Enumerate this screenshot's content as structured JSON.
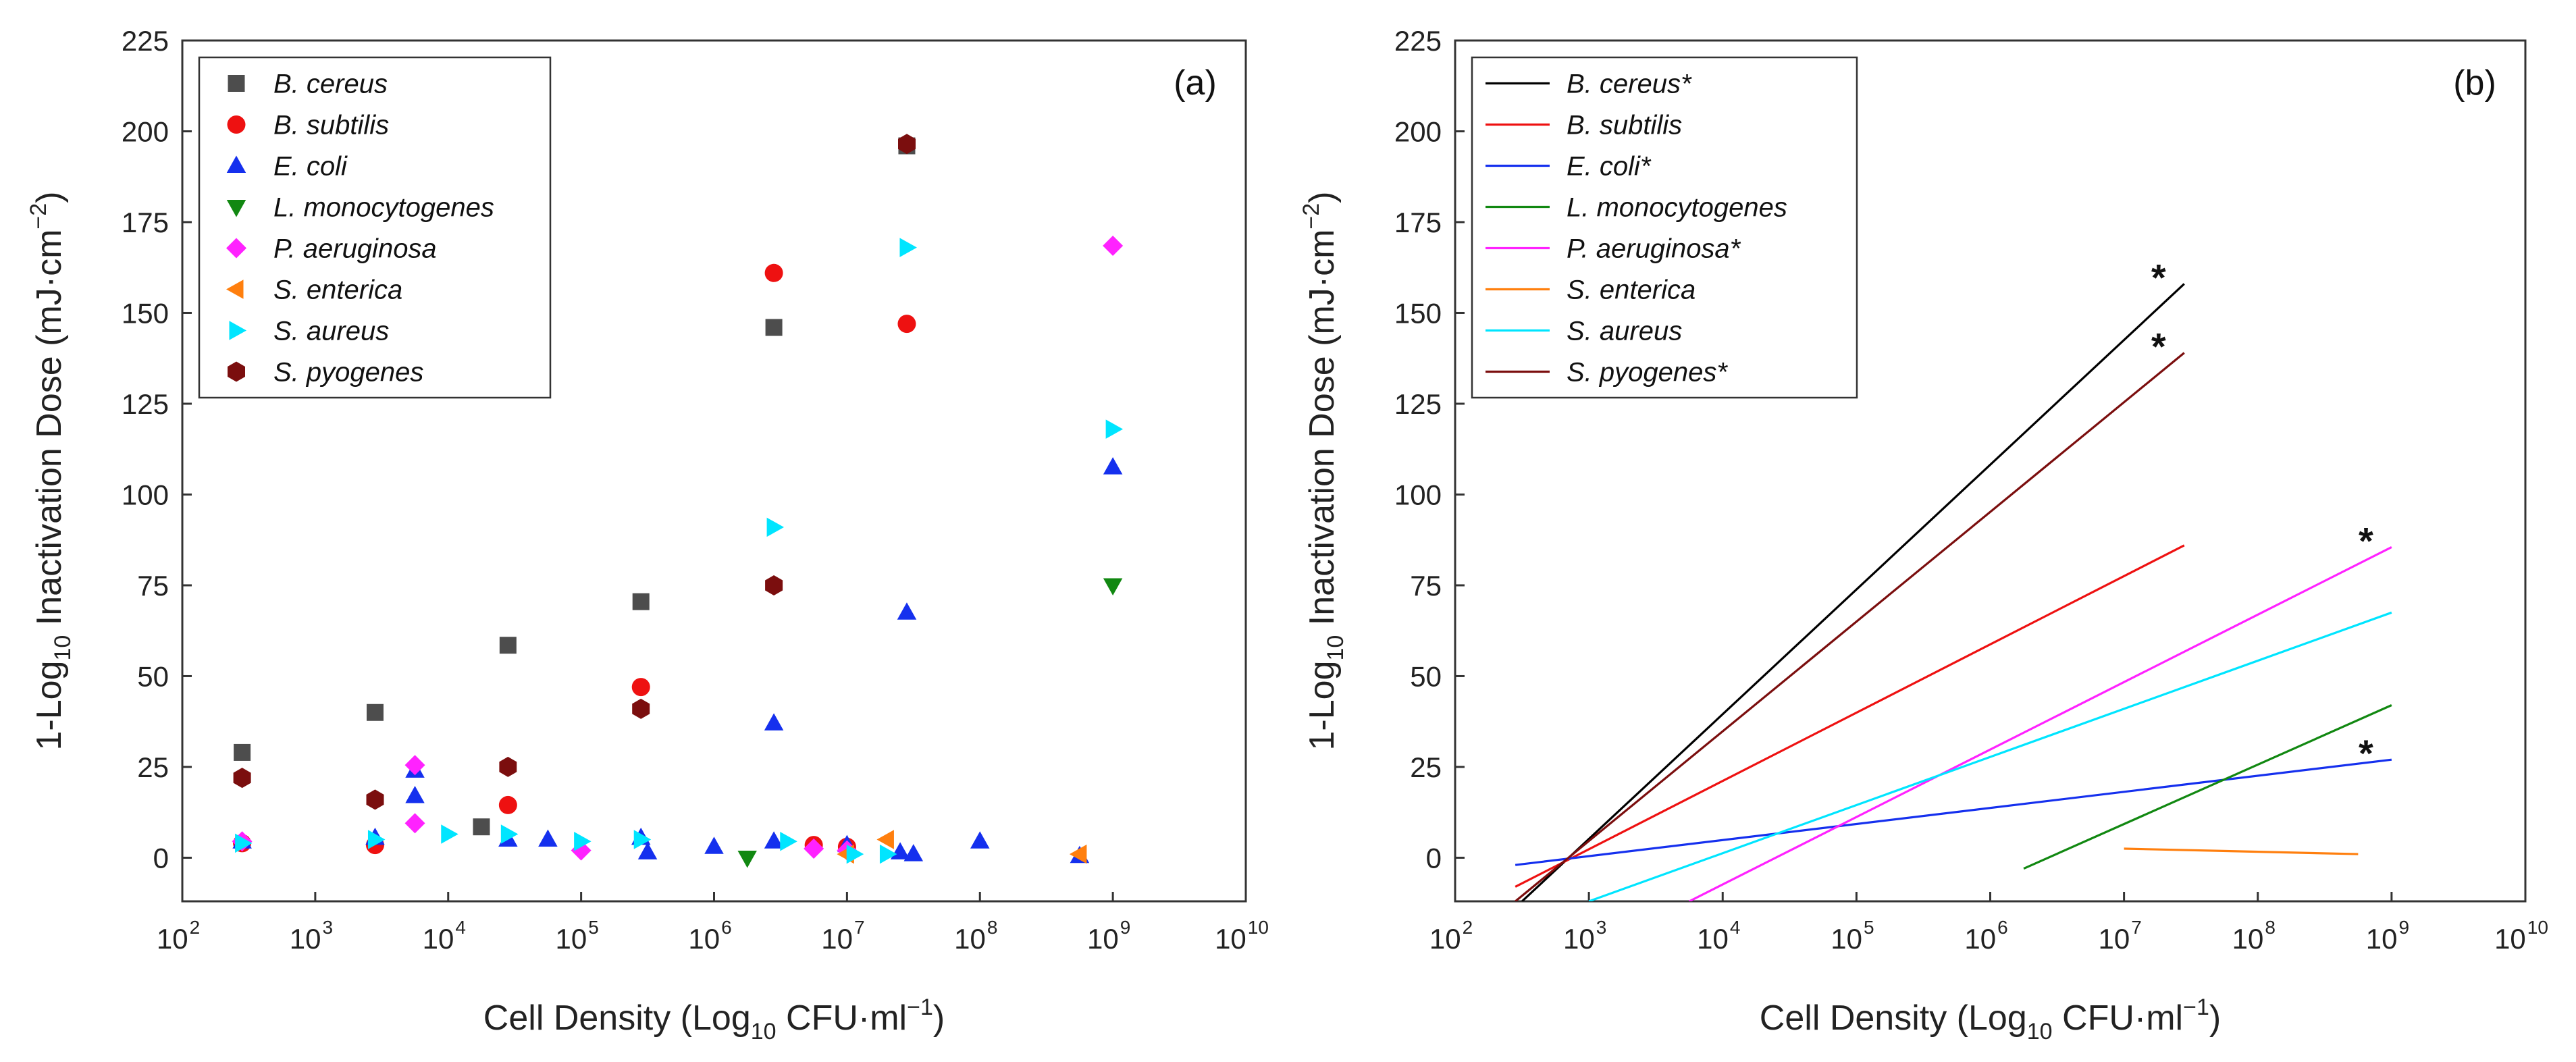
{
  "chart_data": [
    {
      "panel_label": "(a)",
      "type": "scatter",
      "xscale": "log10",
      "xlim": [
        2,
        10
      ],
      "ylim": [
        -12,
        225
      ],
      "x_ticks": [
        2,
        3,
        4,
        5,
        6,
        7,
        8,
        9,
        10
      ],
      "y_ticks": [
        0,
        25,
        50,
        75,
        100,
        125,
        150,
        175,
        200,
        225
      ],
      "tick_base": "10",
      "xlabel": {
        "main": "Cell Density (Log",
        "sub": "10",
        "rest": " CFU·ml",
        "sup": "−1",
        "end": ")"
      },
      "ylabel": {
        "pre": "1-Log",
        "sub": "10",
        "main": " Inactivation Dose (mJ·cm",
        "sup": "−2",
        "end": ")"
      },
      "legend_position": "top-left",
      "series": [
        {
          "name": "B. cereus",
          "marker": "square",
          "color": "#4d4d4d",
          "points": [
            [
              2.45,
              29
            ],
            [
              3.45,
              40
            ],
            [
              4.25,
              8.5
            ],
            [
              4.45,
              58.5
            ],
            [
              5.45,
              70.5
            ],
            [
              6.45,
              146
            ],
            [
              7.45,
              196
            ]
          ]
        },
        {
          "name": "B. subtilis",
          "marker": "circle",
          "color": "#ee1111",
          "points": [
            [
              2.45,
              4
            ],
            [
              3.45,
              3.5
            ],
            [
              4.45,
              14.5
            ],
            [
              5.45,
              47
            ],
            [
              6.45,
              161
            ],
            [
              7.45,
              147
            ],
            [
              6.75,
              3.5
            ],
            [
              7.0,
              3
            ]
          ]
        },
        {
          "name": "E. coli",
          "marker": "triangle-up",
          "color": "#1530ee",
          "points": [
            [
              2.45,
              4.5
            ],
            [
              3.45,
              5.5
            ],
            [
              3.75,
              24
            ],
            [
              3.75,
              17
            ],
            [
              4.45,
              5
            ],
            [
              4.75,
              5
            ],
            [
              5.45,
              5.5
            ],
            [
              5.5,
              1.5
            ],
            [
              6.0,
              3
            ],
            [
              6.45,
              37
            ],
            [
              6.45,
              4.5
            ],
            [
              7.0,
              3.5
            ],
            [
              7.4,
              1.5
            ],
            [
              7.45,
              67.5
            ],
            [
              7.5,
              1
            ],
            [
              8.0,
              4.5
            ],
            [
              8.75,
              0.5
            ],
            [
              9.0,
              107.5
            ]
          ]
        },
        {
          "name": "L. monocytogenes",
          "marker": "triangle-down",
          "color": "#118811",
          "points": [
            [
              6.25,
              0
            ],
            [
              9.0,
              75
            ]
          ]
        },
        {
          "name": "P. aeruginosa",
          "marker": "diamond",
          "color": "#ff22ff",
          "points": [
            [
              2.45,
              4.5
            ],
            [
              3.75,
              25.5
            ],
            [
              3.75,
              9.5
            ],
            [
              5.0,
              2
            ],
            [
              6.75,
              2.5
            ],
            [
              7.0,
              2
            ],
            [
              9.0,
              168.5
            ]
          ]
        },
        {
          "name": "S. enterica",
          "marker": "triangle-left",
          "color": "#ff7f0e",
          "points": [
            [
              7.0,
              1
            ],
            [
              7.3,
              5
            ],
            [
              8.75,
              1
            ]
          ]
        },
        {
          "name": "S. aureus",
          "marker": "triangle-right",
          "color": "#00e5ff",
          "points": [
            [
              2.45,
              4
            ],
            [
              3.45,
              5
            ],
            [
              4.0,
              6.5
            ],
            [
              4.45,
              6.5
            ],
            [
              5.0,
              4.5
            ],
            [
              5.45,
              5
            ],
            [
              6.45,
              91
            ],
            [
              6.55,
              4.5
            ],
            [
              7.05,
              1
            ],
            [
              7.3,
              1
            ],
            [
              7.45,
              168
            ],
            [
              9.0,
              118
            ]
          ]
        },
        {
          "name": "S. pyogenes",
          "marker": "hexagon",
          "color": "#7b0e0e",
          "points": [
            [
              2.45,
              22
            ],
            [
              3.45,
              16
            ],
            [
              4.45,
              25
            ],
            [
              5.45,
              41
            ],
            [
              6.45,
              75
            ],
            [
              7.45,
              196.5
            ]
          ]
        }
      ]
    },
    {
      "panel_label": "(b)",
      "type": "line",
      "xscale": "log10",
      "xlim": [
        2,
        10
      ],
      "ylim": [
        -12,
        225
      ],
      "x_ticks": [
        2,
        3,
        4,
        5,
        6,
        7,
        8,
        9,
        10
      ],
      "y_ticks": [
        0,
        25,
        50,
        75,
        100,
        125,
        150,
        175,
        200,
        225
      ],
      "tick_base": "10",
      "xlabel": {
        "main": "Cell Density (Log",
        "sub": "10",
        "rest": " CFU·ml",
        "sup": "−1",
        "end": ")"
      },
      "ylabel": {
        "pre": "1-Log",
        "sub": "10",
        "main": " Inactivation Dose (mJ·cm",
        "sup": "−2",
        "end": ")"
      },
      "legend_position": "top-left",
      "annotation_text": "*",
      "series": [
        {
          "name": "B. cereus*",
          "color": "#000000",
          "x": [
            2.5,
            7.45
          ],
          "y": [
            -12,
            158
          ],
          "star": true
        },
        {
          "name": "B. subtilis",
          "color": "#ee1111",
          "x": [
            2.45,
            7.45
          ],
          "y": [
            -8,
            86
          ],
          "star": false
        },
        {
          "name": "E. coli*",
          "color": "#1530ee",
          "x": [
            2.45,
            9.0
          ],
          "y": [
            -2,
            27
          ],
          "star": true
        },
        {
          "name": "L. monocytogenes",
          "color": "#118811",
          "x": [
            6.25,
            9.0
          ],
          "y": [
            -3,
            42
          ],
          "star": false
        },
        {
          "name": "P. aeruginosa*",
          "color": "#ff22ff",
          "x": [
            3.75,
            9.0
          ],
          "y": [
            -12,
            85.5
          ],
          "star": true
        },
        {
          "name": "S. enterica",
          "color": "#ff7f0e",
          "x": [
            7.0,
            8.75
          ],
          "y": [
            2.5,
            1
          ],
          "star": false
        },
        {
          "name": "S. aureus",
          "color": "#00e5ff",
          "x": [
            3.0,
            9.0
          ],
          "y": [
            -12,
            67.5
          ],
          "star": false
        },
        {
          "name": "S. pyogenes*",
          "color": "#7b0e0e",
          "x": [
            2.45,
            7.45
          ],
          "y": [
            -12,
            139
          ],
          "star": true
        }
      ]
    }
  ]
}
